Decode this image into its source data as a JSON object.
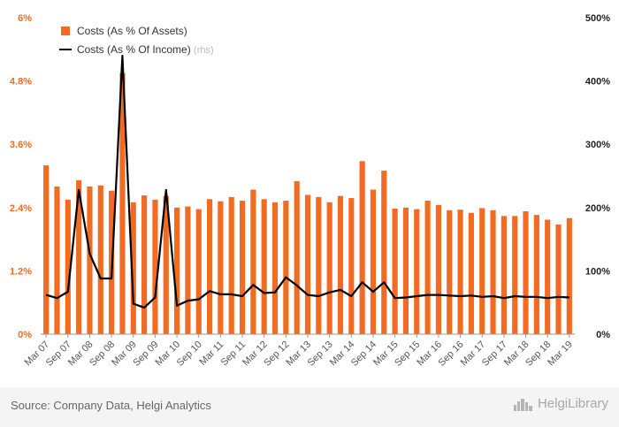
{
  "chart_data": {
    "type": "bar+line",
    "categories": [
      "Mar 07",
      "Jun 07",
      "Sep 07",
      "Dec 07",
      "Mar 08",
      "Jun 08",
      "Sep 08",
      "Dec 08",
      "Mar 09",
      "Jun 09",
      "Sep 09",
      "Dec 09",
      "Mar 10",
      "Jun 10",
      "Sep 10",
      "Dec 10",
      "Mar 11",
      "Jun 11",
      "Sep 11",
      "Dec 11",
      "Mar 12",
      "Jun 12",
      "Sep 12",
      "Dec 12",
      "Mar 13",
      "Jun 13",
      "Sep 13",
      "Dec 13",
      "Mar 14",
      "Jun 14",
      "Sep 14",
      "Dec 14",
      "Mar 15",
      "Jun 15",
      "Sep 15",
      "Dec 15",
      "Mar 16",
      "Jun 16",
      "Sep 16",
      "Dec 16",
      "Mar 17",
      "Jun 17",
      "Sep 17",
      "Dec 17",
      "Mar 18",
      "Jun 18",
      "Sep 18",
      "Dec 18",
      "Mar 19"
    ],
    "tick_labels": [
      "Mar 07",
      "Sep 07",
      "Mar 08",
      "Sep 08",
      "Mar 09",
      "Sep 09",
      "Mar 10",
      "Sep 10",
      "Mar 11",
      "Sep 11",
      "Mar 12",
      "Sep 12",
      "Mar 13",
      "Sep 13",
      "Mar 14",
      "Sep 14",
      "Mar 15",
      "Sep 15",
      "Mar 16",
      "Sep 16",
      "Mar 17",
      "Sep 17",
      "Mar 18",
      "Sep 18",
      "Mar 19"
    ],
    "series": [
      {
        "name": "Costs (As % Of Assets)",
        "type": "bar",
        "axis": "left",
        "color": "#f26b22",
        "values": [
          3.2,
          2.8,
          2.55,
          2.92,
          2.8,
          2.82,
          2.72,
          4.95,
          2.5,
          2.63,
          2.55,
          2.62,
          2.4,
          2.42,
          2.37,
          2.56,
          2.52,
          2.6,
          2.53,
          2.74,
          2.56,
          2.5,
          2.53,
          2.9,
          2.64,
          2.6,
          2.5,
          2.62,
          2.58,
          3.28,
          2.74,
          3.1,
          2.38,
          2.4,
          2.37,
          2.53,
          2.45,
          2.35,
          2.36,
          2.3,
          2.39,
          2.35,
          2.24,
          2.24,
          2.33,
          2.26,
          2.17,
          2.08,
          2.2
        ]
      },
      {
        "name": "Costs (As % Of Income)",
        "name_suffix": "(rhs)",
        "type": "line",
        "axis": "right",
        "color": "#000000",
        "values": [
          62,
          57,
          67,
          228,
          127,
          88,
          88,
          440,
          48,
          42,
          58,
          228,
          45,
          53,
          55,
          68,
          63,
          63,
          60,
          78,
          65,
          66,
          90,
          77,
          62,
          60,
          66,
          70,
          60,
          82,
          67,
          82,
          57,
          58,
          60,
          62,
          62,
          61,
          60,
          61,
          59,
          60,
          57,
          60,
          59,
          59,
          57,
          59,
          58
        ]
      }
    ],
    "y_left": {
      "min": 0,
      "max": 6,
      "ticks": [
        "0%",
        "1.2%",
        "2.4%",
        "3.6%",
        "4.8%",
        "6%"
      ]
    },
    "y_right": {
      "min": 0,
      "max": 500,
      "ticks": [
        "0%",
        "100%",
        "200%",
        "300%",
        "400%",
        "500%"
      ]
    },
    "legend_position": "top-left",
    "grid": false
  },
  "footer": {
    "source": "Source: Company Data, Helgi Analytics",
    "brand": "HelgiLibrary",
    "brand_icon": "city-skyline-icon"
  }
}
